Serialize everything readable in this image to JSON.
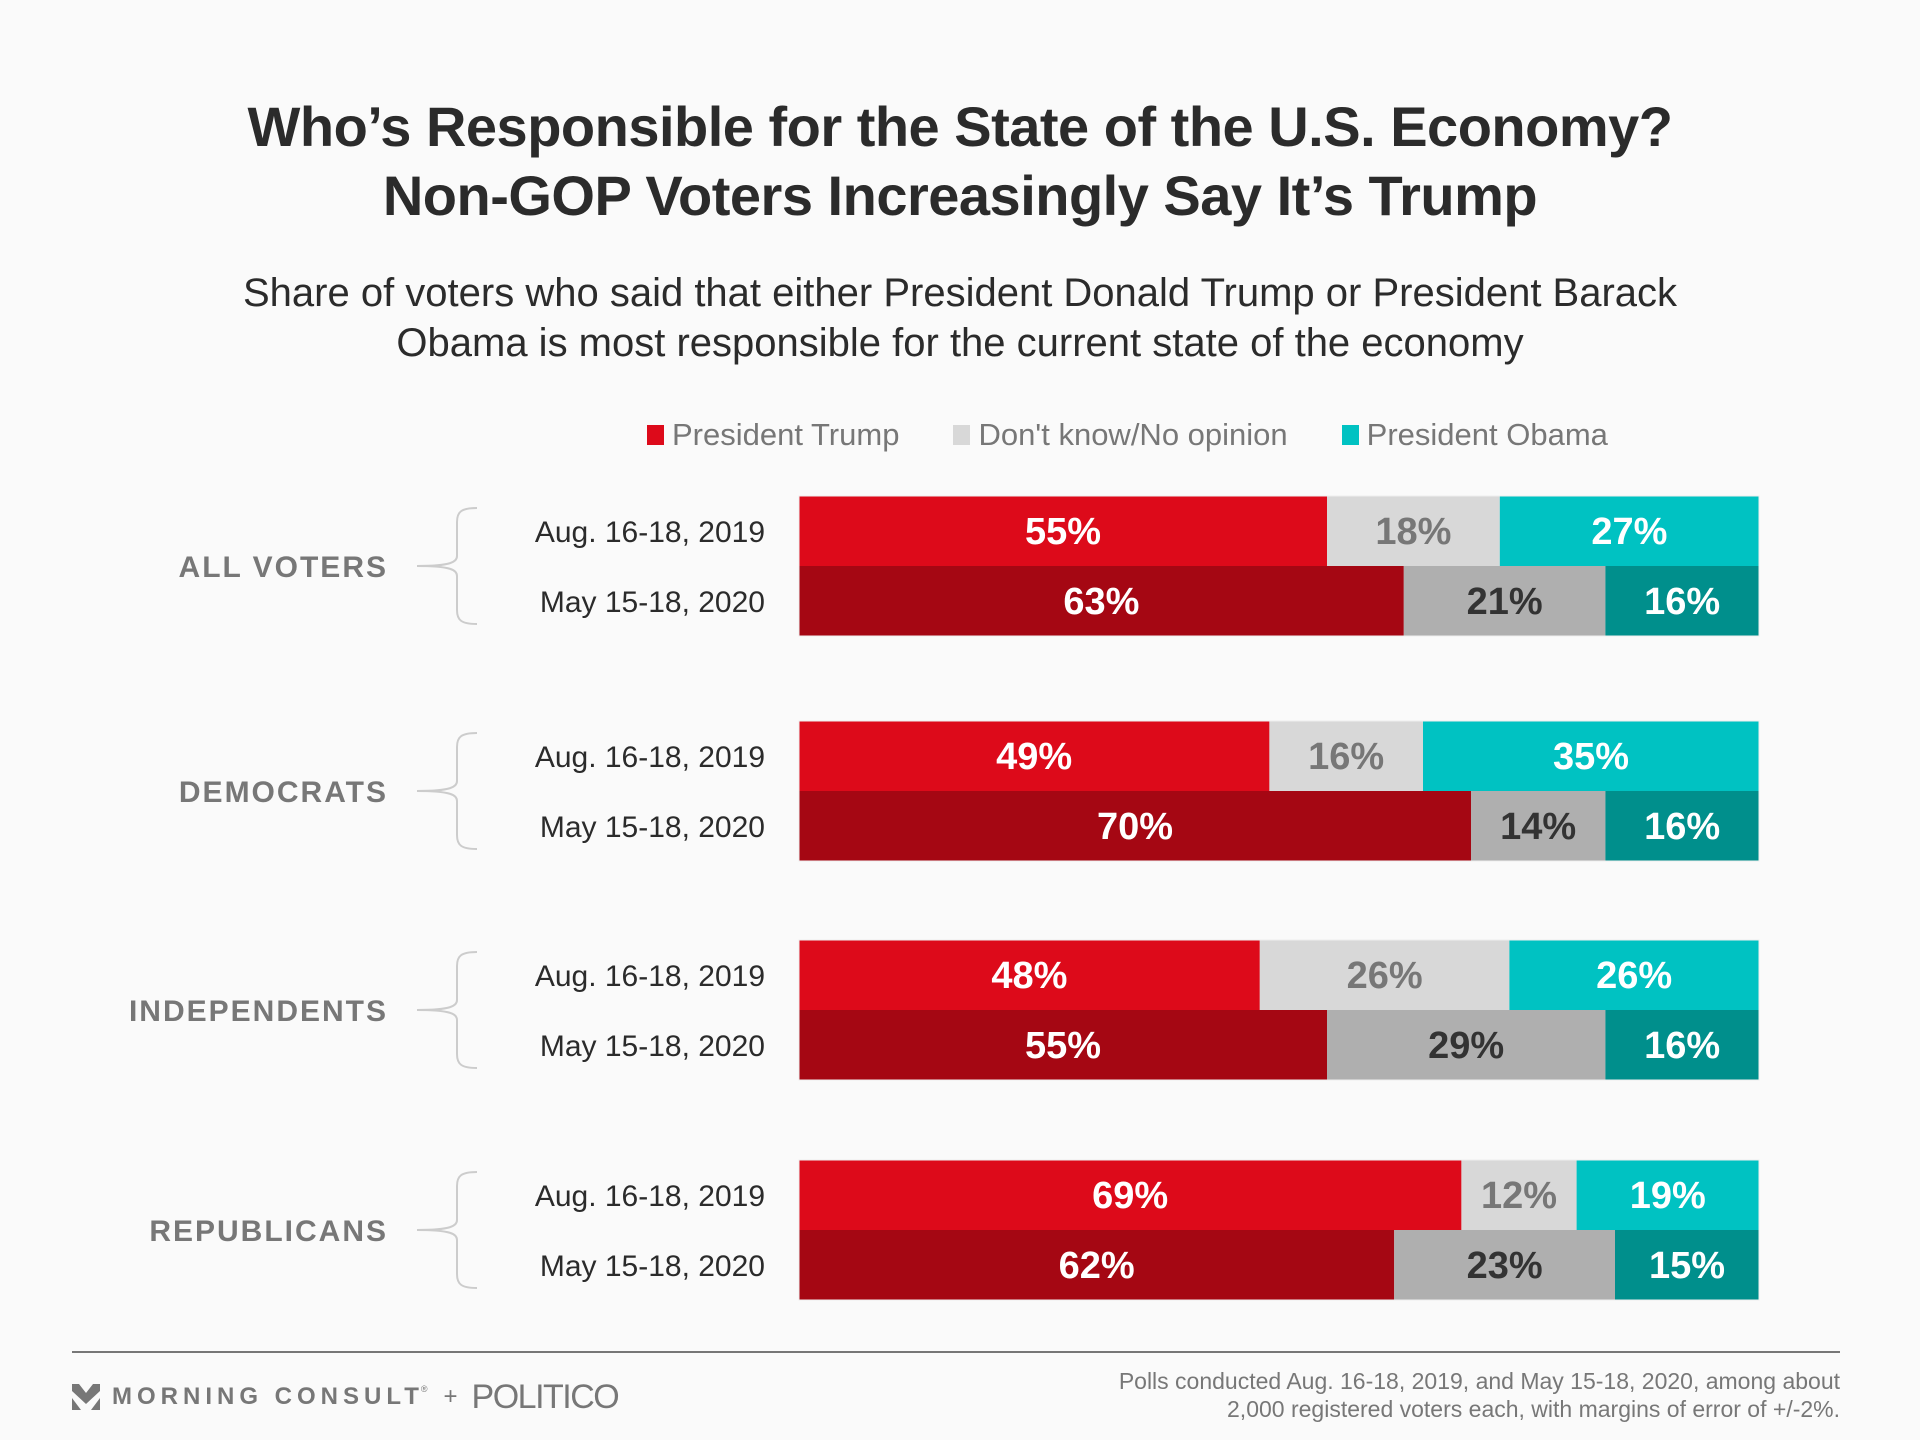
{
  "title": {
    "line1": "Who’s Responsible for the State of the U.S. Economy?",
    "line2": "Non-GOP Voters Increasingly Say It’s Trump"
  },
  "subtitle": {
    "line1": "Share of voters who said that either President Donald Trump or President Barack",
    "line2": "Obama is most responsible for the current state of the economy"
  },
  "legend": [
    {
      "label": "President Trump",
      "color": "#dd0a1a"
    },
    {
      "label": "Don't know/No opinion",
      "color": "#d8d8d8"
    },
    {
      "label": "President Obama",
      "color": "#00c2c2"
    }
  ],
  "colors": {
    "2019": {
      "trump": "#dd0a1a",
      "dk": "#d8d8d8",
      "obama": "#00c2c2",
      "trump_text": "#ffffff",
      "dk_text": "#777777",
      "obama_text": "#ffffff"
    },
    "2020": {
      "trump": "#a50713",
      "dk": "#afafaf",
      "obama": "#008f8c",
      "trump_text": "#ffffff",
      "dk_text": "#333333",
      "obama_text": "#ffffff"
    },
    "group_label": "#777777",
    "brace": "#cccccc"
  },
  "chart_data": {
    "type": "bar",
    "orientation": "horizontal-stacked-100",
    "title": "Who’s Responsible for the State of the U.S. Economy? Non-GOP Voters Increasingly Say It’s Trump",
    "subtitle": "Share of voters who said that either President Donald Trump or President Barack Obama is most responsible for the current state of the economy",
    "series_names": [
      "President Trump",
      "Don't know/No opinion",
      "President Obama"
    ],
    "legend_position": "top",
    "unit": "%",
    "xlim": [
      0,
      100
    ],
    "groups": [
      {
        "label": "ALL VOTERS",
        "rows": [
          {
            "date": "Aug. 16-18, 2019",
            "period": "2019",
            "values": [
              55,
              18,
              27
            ]
          },
          {
            "date": "May 15-18, 2020",
            "period": "2020",
            "values": [
              63,
              21,
              16
            ]
          }
        ]
      },
      {
        "label": "DEMOCRATS",
        "rows": [
          {
            "date": "Aug. 16-18, 2019",
            "period": "2019",
            "values": [
              49,
              16,
              35
            ]
          },
          {
            "date": "May 15-18, 2020",
            "period": "2020",
            "values": [
              70,
              14,
              16
            ]
          }
        ]
      },
      {
        "label": "INDEPENDENTS",
        "rows": [
          {
            "date": "Aug. 16-18, 2019",
            "period": "2019",
            "values": [
              48,
              26,
              26
            ]
          },
          {
            "date": "May 15-18, 2020",
            "period": "2020",
            "values": [
              55,
              29,
              16
            ]
          }
        ]
      },
      {
        "label": "REPUBLICANS",
        "rows": [
          {
            "date": "Aug. 16-18, 2019",
            "period": "2019",
            "values": [
              69,
              12,
              19
            ]
          },
          {
            "date": "May 15-18, 2020",
            "period": "2020",
            "values": [
              62,
              23,
              15
            ]
          }
        ]
      }
    ]
  },
  "footer": {
    "brand1": "MORNING CONSULT",
    "registered": "®",
    "plus": "+",
    "brand2": "POLITICO",
    "note_line1": "Polls conducted Aug. 16-18, 2019, and May 15-18, 2020, among about",
    "note_line2": "2,000 registered voters each, with margins of error of +/-2%."
  }
}
